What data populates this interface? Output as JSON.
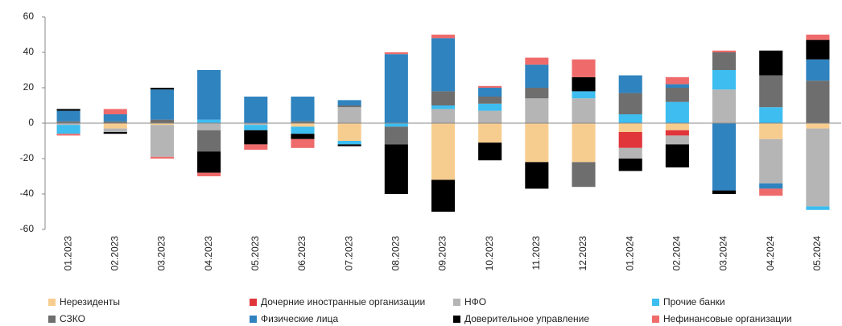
{
  "chart_data": {
    "type": "stacked_bar",
    "categories": [
      "01.2023",
      "02.2023",
      "03.2023",
      "04.2023",
      "05.2023",
      "06.2023",
      "07.2023",
      "08.2023",
      "09.2023",
      "10.2023",
      "11.2023",
      "12.2023",
      "01.2024",
      "02.2024",
      "03.2024",
      "04.2024",
      "05.2024"
    ],
    "series": [
      {
        "name": "Нерезиденты",
        "color": "#f7cd8f",
        "values": [
          0,
          -3,
          -1,
          0,
          0,
          -2,
          -10,
          0,
          -32,
          -11,
          -22,
          -22,
          -5,
          -4,
          0,
          -9,
          -3
        ]
      },
      {
        "name": "Дочерние иностранные организации",
        "color": "#e0353b",
        "values": [
          0,
          0,
          0,
          0,
          0,
          0,
          0,
          0,
          0,
          0,
          0,
          0,
          -9,
          -3,
          0,
          0,
          0
        ]
      },
      {
        "name": "НФО",
        "color": "#b5b5b5",
        "values": [
          -1,
          -2,
          -18,
          -4,
          -1,
          0,
          9,
          0,
          8,
          7,
          14,
          14,
          -6,
          -5,
          19,
          -25,
          -44
        ]
      },
      {
        "name": "Прочие банки",
        "color": "#3dbdf0",
        "values": [
          -5,
          0,
          0,
          2,
          -3,
          -4,
          -2,
          -2,
          2,
          4,
          0,
          4,
          5,
          12,
          11,
          9,
          -2
        ]
      },
      {
        "name": "СЗКО",
        "color": "#6e6e6e",
        "values": [
          1,
          1,
          2,
          -12,
          0,
          1,
          1,
          -10,
          8,
          4,
          6,
          -14,
          12,
          8,
          10,
          18,
          24
        ]
      },
      {
        "name": "Физические лица",
        "color": "#2f83bf",
        "values": [
          6,
          4,
          17,
          28,
          15,
          14,
          3,
          39,
          30,
          5,
          13,
          0,
          10,
          2,
          -38,
          -3,
          12
        ]
      },
      {
        "name": "Доверительное управление",
        "color": "#000000",
        "values": [
          1,
          -1,
          1,
          -12,
          -8,
          -3,
          -1,
          -28,
          -18,
          -10,
          -15,
          8,
          -7,
          -13,
          -2,
          14,
          11
        ]
      },
      {
        "name": "Нефинансовые организации",
        "color": "#ef6b6b",
        "values": [
          -1,
          3,
          -1,
          -2,
          -3,
          -5,
          0,
          1,
          2,
          1,
          4,
          10,
          0,
          4,
          1,
          -4,
          3
        ]
      }
    ],
    "ylim": [
      -60,
      60
    ],
    "yticks": [
      -60,
      -40,
      -20,
      0,
      20,
      40,
      60
    ]
  }
}
